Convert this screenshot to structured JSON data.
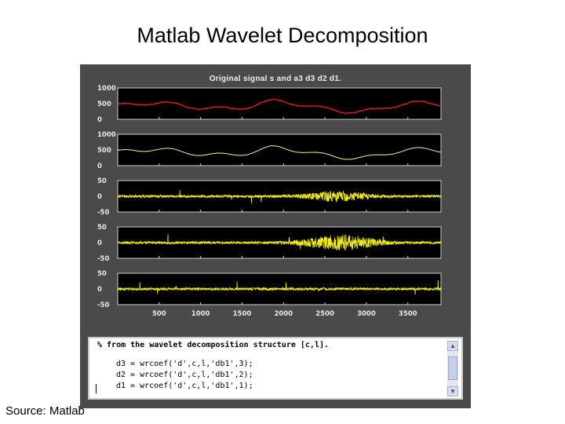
{
  "slide": {
    "title": "Matlab Wavelet Decomposition",
    "source": "Source: Matlab"
  },
  "figure": {
    "title": "Original signal s and a3 d3 d2 d1.",
    "panels": [
      {
        "name": "s",
        "yticks": [
          "1000",
          "500",
          "0"
        ],
        "color": "#e11a1a",
        "ylim": [
          0,
          1000
        ]
      },
      {
        "name": "a3",
        "yticks": [
          "1000",
          "500",
          "0"
        ],
        "color": "#f2f28a",
        "ylim": [
          0,
          1000
        ]
      },
      {
        "name": "d3",
        "yticks": [
          "50",
          "0",
          "-50"
        ],
        "color": "#f5f00a",
        "ylim": [
          -50,
          50
        ]
      },
      {
        "name": "d2",
        "yticks": [
          "50",
          "0",
          "-50"
        ],
        "color": "#f5f00a",
        "ylim": [
          -50,
          50
        ]
      },
      {
        "name": "d1",
        "yticks": [
          "50",
          "0",
          "-50"
        ],
        "color": "#f5f00a",
        "ylim": [
          -50,
          50
        ]
      }
    ],
    "xticks": [
      "500",
      "1000",
      "1500",
      "2000",
      "2500",
      "3000",
      "3500"
    ],
    "xlim": [
      0,
      3900
    ]
  },
  "console": {
    "lines": [
      "% from the wavelet decomposition structure [c,l].",
      "d3 = wrcoef('d',c,l,'db1',3);",
      "d2 = wrcoef('d',c,l,'db1',2);",
      "d1 = wrcoef('d',c,l,'db1',1);"
    ],
    "scroll_up_icon": "triangle-up",
    "scroll_down_icon": "triangle-down"
  }
}
